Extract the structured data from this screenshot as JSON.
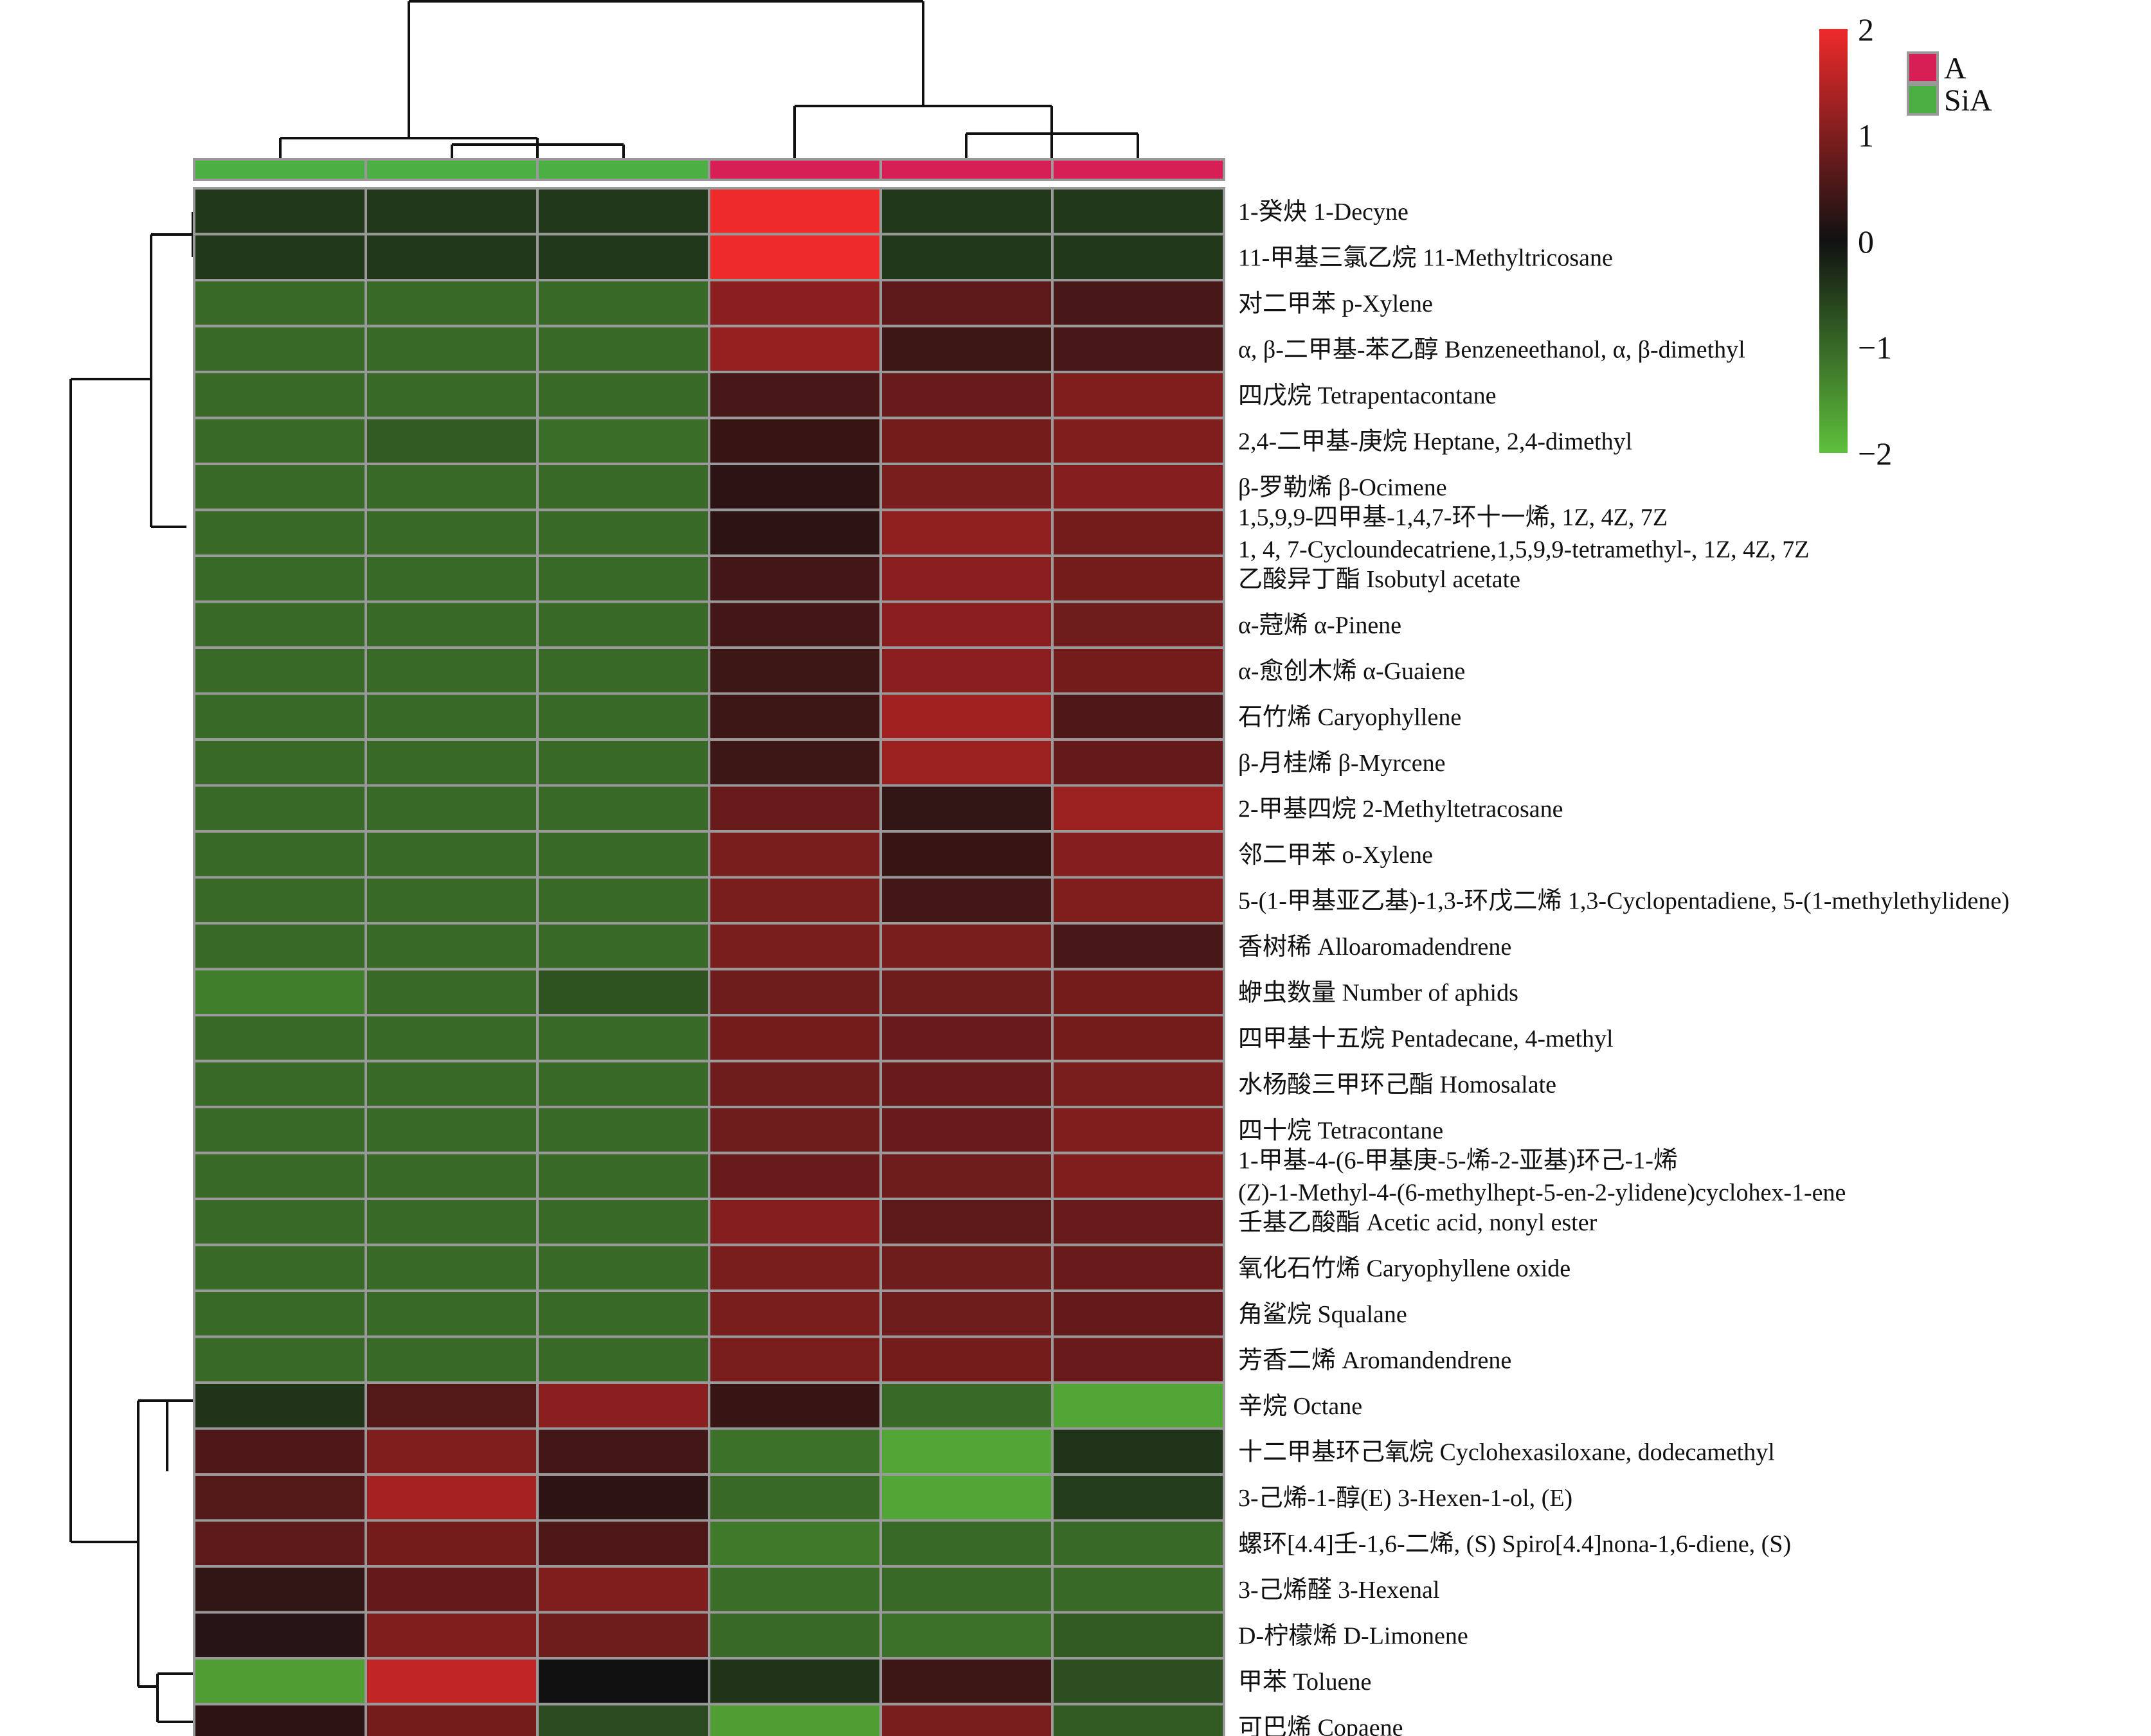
{
  "chart_data": {
    "type": "heatmap",
    "title": "",
    "color_scale": {
      "min": -2,
      "max": 2,
      "ticks": [
        "2",
        "1",
        "0",
        "−1",
        "−2"
      ],
      "colors": {
        "low": "#5ec03c",
        "mid": "#111111",
        "high": "#ee2a2a"
      }
    },
    "column_groups": [
      {
        "name": "A",
        "color": "#d81f55"
      },
      {
        "name": "SiA",
        "color": "#4caf44"
      }
    ],
    "column_annotation": [
      "SiA",
      "SiA",
      "SiA",
      "A",
      "A",
      "A"
    ],
    "rows": [
      "1-癸炔 1-Decyne",
      "11-甲基三氯乙烷 11-Methyltricosane",
      "对二甲苯  p-Xylene",
      "α, β-二甲基-苯乙醇 Benzeneethanol, α, β-dimethyl",
      "四戊烷  Tetrapentacontane",
      "2,4-二甲基-庚烷 Heptane, 2,4-dimethyl",
      "β-罗勒烯 β-Ocimene",
      "1,5,9,9-四甲基-1,4,7-环十一烯, 1Z, 4Z, 7Z\n1, 4, 7-Cycloundecatriene,1,5,9,9-tetramethyl-, 1Z, 4Z, 7Z",
      "乙酸异丁酯  Isobutyl acetate",
      "α-蒄烯 α-Pinene",
      "α-愈创木烯 α-Guaiene",
      "石竹烯 Caryophyllene",
      "β-月桂烯 β-Myrcene",
      "2-甲基四烷 2-Methyltetracosane",
      "邻二甲苯 o-Xylene",
      "5-(1-甲基亚乙基)-1,3-环戊二烯 1,3-Cyclopentadiene, 5-(1-methylethylidene)",
      "香树稀 Alloaromadendrene",
      "蛜虫数量 Number of aphids",
      "四甲基十五烷 Pentadecane, 4-methyl",
      "水杨酸三甲环己酯 Homosalate",
      "四十烷 Tetracontane",
      "1-甲基-4-(6-甲基庚-5-烯-2-亚基)环己-1-烯\n(Z)-1-Methyl-4-(6-methylhept-5-en-2-ylidene)cyclohex-1-ene",
      "壬基乙酸酯 Acetic acid, nonyl ester",
      "氧化石竹烯 Caryophyllene oxide",
      "角鲨烷 Squalane",
      "芳香二烯 Aromandendrene",
      "辛烷 Octane",
      "十二甲基环己氧烷 Cyclohexasiloxane, dodecamethyl",
      "3-己烯-1-醇(E) 3-Hexen-1-ol, (E)",
      "螺环[4.4]壬-1,6-二烯, (S) Spiro[4.4]nona-1,6-diene, (S)",
      "3-己烯醛 3-Hexenal",
      "D-柠檬烯 D-Limonene",
      "甲苯 Toluene",
      "可巴烯 Copaene"
    ],
    "values": [
      [
        -0.45,
        -0.45,
        -0.45,
        2.0,
        -0.45,
        -0.45
      ],
      [
        -0.45,
        -0.45,
        -0.45,
        2.0,
        -0.45,
        -0.45
      ],
      [
        -1.0,
        -1.0,
        -1.0,
        1.1,
        0.7,
        0.5
      ],
      [
        -1.0,
        -1.0,
        -1.0,
        1.2,
        0.4,
        0.5
      ],
      [
        -1.0,
        -1.0,
        -1.0,
        0.5,
        0.8,
        1.0
      ],
      [
        -1.0,
        -0.85,
        -1.05,
        0.35,
        0.9,
        1.0
      ],
      [
        -1.0,
        -1.0,
        -1.0,
        0.25,
        0.95,
        1.05
      ],
      [
        -1.0,
        -1.0,
        -1.0,
        0.25,
        1.15,
        0.9
      ],
      [
        -1.0,
        -1.0,
        -1.0,
        0.45,
        1.1,
        0.9
      ],
      [
        -1.0,
        -1.0,
        -1.0,
        0.45,
        1.1,
        0.85
      ],
      [
        -1.0,
        -1.0,
        -1.0,
        0.4,
        1.1,
        0.9
      ],
      [
        -1.0,
        -1.0,
        -1.0,
        0.4,
        1.3,
        0.55
      ],
      [
        -1.0,
        -1.0,
        -1.0,
        0.4,
        1.25,
        0.75
      ],
      [
        -1.0,
        -1.0,
        -1.0,
        0.8,
        0.3,
        1.25
      ],
      [
        -1.0,
        -1.0,
        -1.0,
        0.95,
        0.35,
        1.05
      ],
      [
        -1.0,
        -1.0,
        -1.0,
        0.95,
        0.45,
        1.0
      ],
      [
        -1.0,
        -1.0,
        -1.0,
        0.95,
        0.95,
        0.5
      ],
      [
        -1.25,
        -1.0,
        -0.75,
        0.85,
        0.85,
        0.9
      ],
      [
        -1.0,
        -1.0,
        -1.0,
        0.9,
        0.8,
        0.9
      ],
      [
        -1.0,
        -1.0,
        -1.0,
        0.85,
        0.8,
        0.95
      ],
      [
        -1.0,
        -1.0,
        -1.0,
        0.85,
        0.8,
        1.0
      ],
      [
        -1.0,
        -1.0,
        -1.0,
        0.8,
        0.85,
        1.0
      ],
      [
        -1.0,
        -1.0,
        -1.0,
        1.05,
        0.7,
        0.8
      ],
      [
        -1.0,
        -1.0,
        -1.0,
        0.95,
        0.85,
        0.8
      ],
      [
        -1.0,
        -1.0,
        -1.0,
        0.95,
        0.85,
        0.75
      ],
      [
        -1.0,
        -1.0,
        -1.0,
        0.95,
        0.9,
        0.8
      ],
      [
        -0.4,
        0.6,
        1.1,
        0.35,
        -1.0,
        -1.7
      ],
      [
        0.55,
        1.0,
        0.45,
        -1.1,
        -1.7,
        -0.4
      ],
      [
        0.6,
        1.35,
        0.25,
        -1.0,
        -1.7,
        -0.5
      ],
      [
        0.7,
        0.9,
        0.55,
        -1.2,
        -1.0,
        -1.0
      ],
      [
        0.3,
        0.75,
        1.0,
        -1.05,
        -1.0,
        -1.0
      ],
      [
        0.2,
        1.0,
        0.85,
        -1.0,
        -1.1,
        -0.85
      ],
      [
        -1.6,
        1.6,
        0.0,
        -0.4,
        0.4,
        -0.7
      ],
      [
        0.25,
        0.9,
        -0.65,
        -1.6,
        0.95,
        -0.85
      ]
    ]
  }
}
